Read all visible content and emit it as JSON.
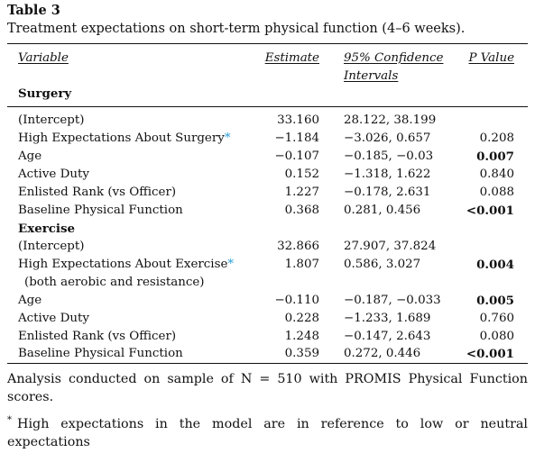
{
  "table": {
    "label": "Table 3",
    "caption": "Treatment expectations on short-term physical function (4–6 weeks).",
    "headers": {
      "variable": "Variable",
      "estimate": "Estimate",
      "ci_line1": "95% Confidence",
      "ci_line2": "Intervals",
      "p_value": "P Value"
    },
    "sections": [
      {
        "name": "Surgery",
        "rows": [
          {
            "variable": "(Intercept)",
            "estimate": "33.160",
            "ci": "28.122, 38.199",
            "p": ""
          },
          {
            "variable": "High Expectations About Surgery",
            "star": "*",
            "estimate": "−1.184",
            "ci": "−3.026, 0.657",
            "p": "0.208"
          },
          {
            "variable": "Age",
            "estimate": "−0.107",
            "ci": "−0.185, −0.03",
            "p": "0.007",
            "p_bold": true
          },
          {
            "variable": "Active Duty",
            "estimate": "0.152",
            "ci": "−1.318, 1.622",
            "p": "0.840"
          },
          {
            "variable": "Enlisted Rank (vs Officer)",
            "estimate": "1.227",
            "ci": "−0.178, 2.631",
            "p": "0.088"
          },
          {
            "variable": "Baseline Physical Function",
            "estimate": "0.368",
            "ci": "0.281, 0.456",
            "p": "<0.001",
            "p_bold": true
          }
        ]
      },
      {
        "name": "Exercise",
        "rows": [
          {
            "variable": "(Intercept)",
            "estimate": "32.866",
            "ci": "27.907, 37.824",
            "p": ""
          },
          {
            "variable": "High Expectations About Exercise",
            "star": "*",
            "variable_line2": "(both aerobic and resistance)",
            "estimate": "1.807",
            "ci": "0.586, 3.027",
            "p": "0.004",
            "p_bold": true
          },
          {
            "variable": "Age",
            "estimate": "−0.110",
            "ci": "−0.187, −0.033",
            "p": "0.005",
            "p_bold": true
          },
          {
            "variable": "Active Duty",
            "estimate": "0.228",
            "ci": "−1.233, 1.689",
            "p": "0.760"
          },
          {
            "variable": "Enlisted Rank (vs Officer)",
            "estimate": "1.248",
            "ci": "−0.147, 2.643",
            "p": "0.080"
          },
          {
            "variable": "Baseline Physical Function",
            "estimate": "0.359",
            "ci": "0.272, 0.446",
            "p": "<0.001",
            "p_bold": true
          }
        ]
      }
    ],
    "footnote_main_line1": "Analysis conducted on sample of N = 510 with PROMIS Physical Function",
    "footnote_main_line2": "scores.",
    "footnote_star_symbol": "*",
    "footnote_star_line1": "High expectations in the model are in reference to low or neutral",
    "footnote_star_line2": "expectations"
  }
}
